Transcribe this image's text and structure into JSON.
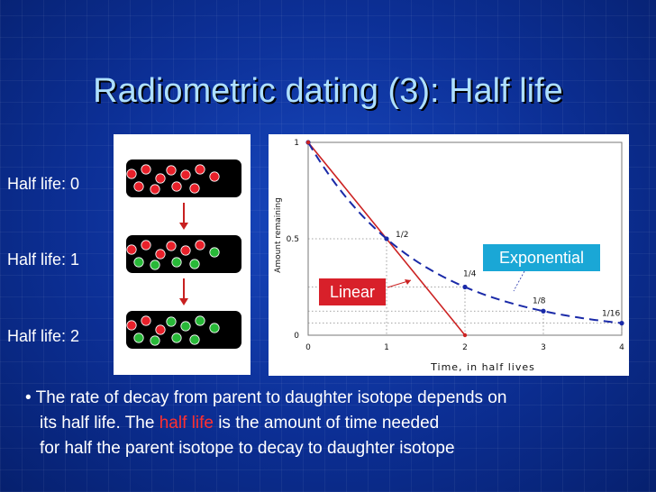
{
  "slide": {
    "title": "Radiometric dating (3): Half life"
  },
  "left_panel": {
    "labels": [
      "Half life: 0",
      "Half life: 1",
      "Half life: 2"
    ],
    "boxes": [
      {
        "red": 11,
        "green": 0
      },
      {
        "red": 6,
        "green": 5
      },
      {
        "red": 3,
        "green": 8
      }
    ],
    "colors": {
      "parent": "#e8202a",
      "daughter": "#28b838",
      "box": "#000000",
      "arrow": "#c82020"
    }
  },
  "callouts": {
    "exponential": "Exponential",
    "linear": "Linear"
  },
  "chart_data": {
    "type": "line",
    "xlabel": "Time, in half lives",
    "ylabel": "Amount remaining",
    "x_ticks": [
      "0",
      "1",
      "2",
      "3",
      "4"
    ],
    "y_ticks": [
      "0",
      "0.5",
      "1"
    ],
    "xlim": [
      0,
      4
    ],
    "ylim": [
      0,
      1
    ],
    "series": [
      {
        "style": "solid",
        "color": "#cc2222",
        "x": [
          0,
          2
        ],
        "y": [
          1,
          0
        ]
      },
      {
        "style": "dashed",
        "color": "#1a2aa8",
        "x": [
          0,
          1,
          2,
          3,
          4
        ],
        "y": [
          1,
          0.5,
          0.25,
          0.125,
          0.0625
        ]
      }
    ],
    "point_labels": [
      {
        "x": 0,
        "y": 1,
        "text": "1"
      },
      {
        "x": 1,
        "y": 0.5,
        "text": "1/2"
      },
      {
        "x": 2,
        "y": 0.25,
        "text": "1/4"
      },
      {
        "x": 3,
        "y": 0.125,
        "text": "1/8"
      },
      {
        "x": 4,
        "y": 0.0625,
        "text": "1/16"
      }
    ],
    "guide_lines": true
  },
  "bullet": {
    "marker": "•",
    "line1": "The rate of decay from parent to daughter isotope depends on",
    "line2_pre": "its half life. The ",
    "line2_highlight": "half life",
    "line2_post": " is the amount of time needed",
    "line3": "for half the parent isotope to decay to daughter isotope"
  }
}
